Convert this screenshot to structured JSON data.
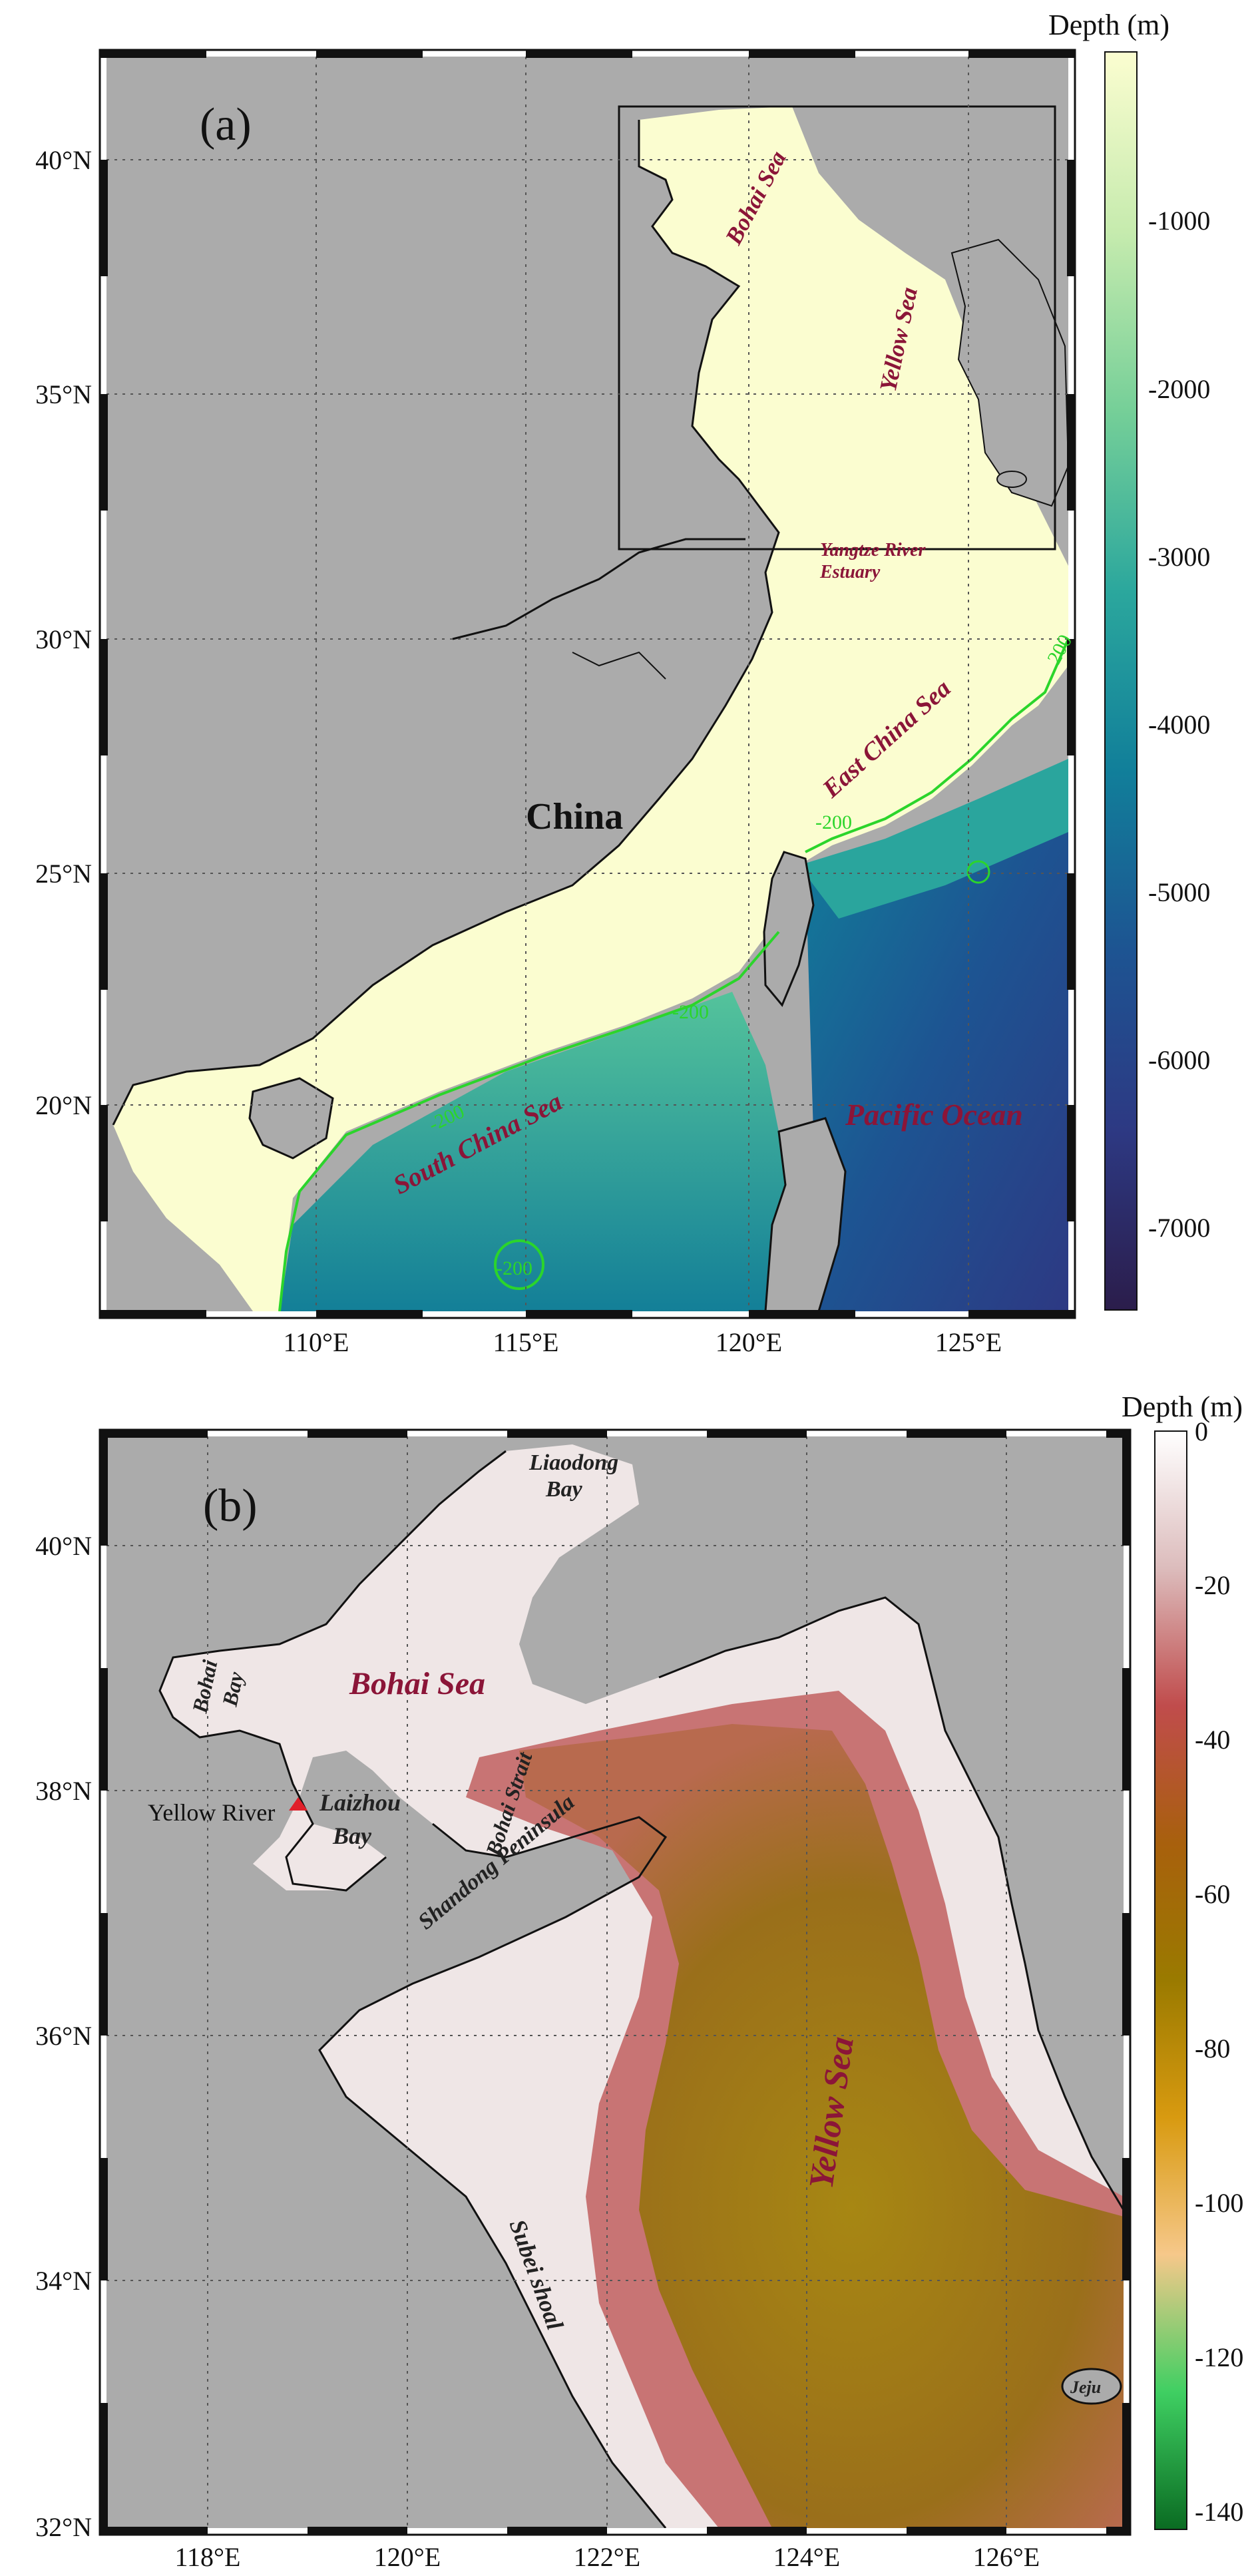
{
  "panel_a": {
    "label": "(a)",
    "colorbar": {
      "title": "Depth (m)",
      "ticks": [
        "-1000",
        "-2000",
        "-3000",
        "-4000",
        "-5000",
        "-6000",
        "-7000"
      ],
      "colors": [
        "#fbfdd0",
        "#c6ebae",
        "#75cf98",
        "#2ba79d",
        "#117f9a",
        "#1d5492",
        "#2d3983",
        "#2b1d4b"
      ]
    },
    "lat_ticks": [
      "40°N",
      "35°N",
      "30°N",
      "25°N",
      "20°N"
    ],
    "lon_ticks": [
      "110°E",
      "115°E",
      "120°E",
      "125°E"
    ],
    "contour_labels": [
      "200",
      "-200",
      "-200",
      "-200",
      "-200"
    ],
    "labels": {
      "bohai_sea": "Bohai Sea",
      "yellow_sea": "Yellow Sea",
      "yangtze": [
        "Yangtze River",
        "Estuary"
      ],
      "east_china_sea": "East China Sea",
      "china": "China",
      "south_china_sea": "South China Sea",
      "pacific_ocean": "Pacific Ocean"
    },
    "colors": {
      "land": "#ababab",
      "shelf": "#fbfdd0",
      "contour": "#2bd52b",
      "label": "#8b1538"
    }
  },
  "panel_b": {
    "label": "(b)",
    "colorbar": {
      "title": "Depth (m)",
      "ticks": [
        "0",
        "-20",
        "-40",
        "-60",
        "-80",
        "-100",
        "-120",
        "-140"
      ],
      "colors": [
        "#ffffff",
        "#dcbcbc",
        "#c04c4c",
        "#a8600d",
        "#9a7a00",
        "#d89a10",
        "#f6c88a",
        "#3fcf62",
        "#0a6b22"
      ]
    },
    "lat_ticks": [
      "40°N",
      "38°N",
      "36°N",
      "34°N",
      "32°N"
    ],
    "lon_ticks": [
      "118°E",
      "120°E",
      "122°E",
      "124°E",
      "126°E"
    ],
    "labels": {
      "liaodong": [
        "Liaodong",
        "Bay"
      ],
      "bohai_sea": "Bohai Sea",
      "bohai_bay": [
        "Bohai",
        "Bay"
      ],
      "bohai_strait": "Bohai Strait",
      "laizhou": [
        "Laizhou",
        "Bay"
      ],
      "yellow_river": "Yellow River",
      "shandong": "Shandong Peninsula",
      "yellow_sea": "Yellow Sea",
      "subei": "Subei shoal",
      "jeju": "Jeju"
    },
    "colors": {
      "land": "#ababab",
      "shallow": "#f2efef",
      "mid": "#c96a6a",
      "deep": "#9b7a10",
      "marker": "#e0202a"
    }
  }
}
